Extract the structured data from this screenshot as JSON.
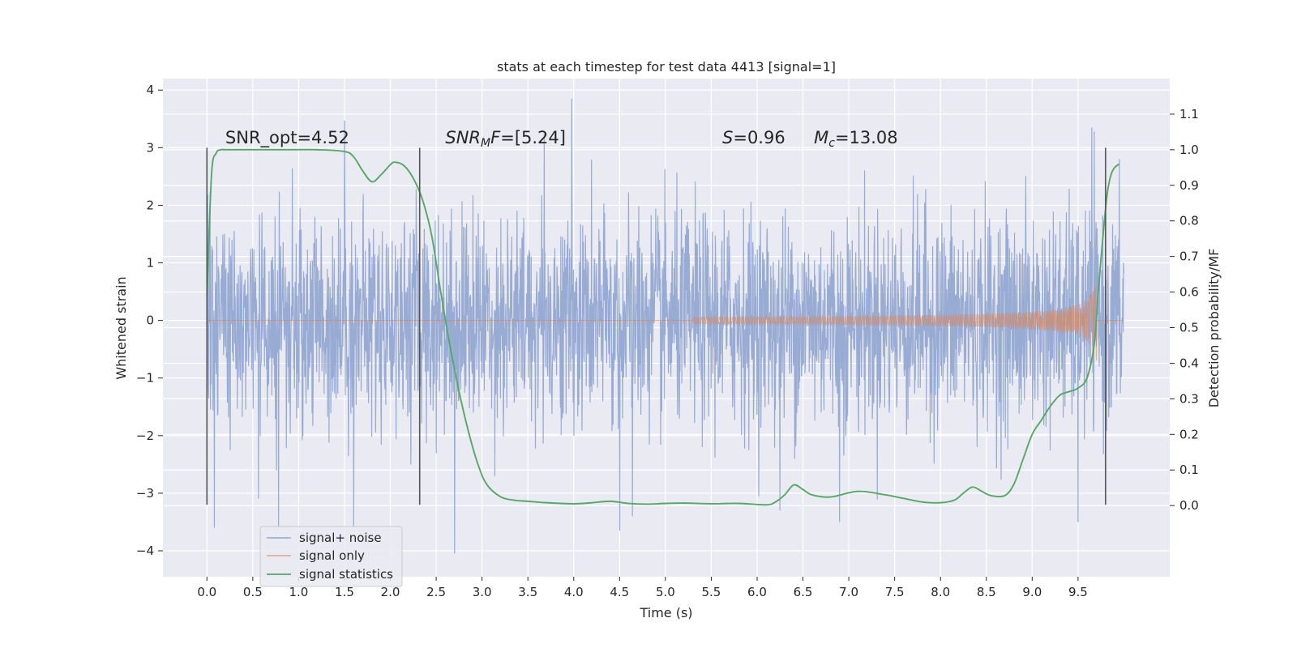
{
  "chart_data": {
    "type": "line",
    "title": "stats at each timestep for test data 4413 [signal=1]",
    "xlabel": "Time (s)",
    "ylabel": "Whitened strain",
    "y2label": "Detection probability/MF",
    "xlim": [
      -0.48,
      10.5
    ],
    "ylim": [
      -4.45,
      4.2
    ],
    "y2lim": [
      -0.2,
      1.2
    ],
    "xticks": [
      0.0,
      0.5,
      1.0,
      1.5,
      2.0,
      2.5,
      3.0,
      3.5,
      4.0,
      4.5,
      5.0,
      5.5,
      6.0,
      6.5,
      7.0,
      7.5,
      8.0,
      8.5,
      9.0,
      9.5
    ],
    "xtick_labels": [
      "0.0",
      "0.5",
      "1.0",
      "1.5",
      "2.0",
      "2.5",
      "3.0",
      "3.5",
      "4.0",
      "4.5",
      "5.0",
      "5.5",
      "6.0",
      "6.5",
      "7.0",
      "7.5",
      "8.0",
      "8.5",
      "9.0",
      "9.5"
    ],
    "yticks": [
      -4,
      -3,
      -2,
      -1,
      0,
      1,
      2,
      3,
      4
    ],
    "ytick_labels": [
      "−4",
      "−3",
      "−2",
      "−1",
      "0",
      "1",
      "2",
      "3",
      "4"
    ],
    "y2ticks": [
      0.0,
      0.1,
      0.2,
      0.3,
      0.4,
      0.5,
      0.6,
      0.7,
      0.8,
      0.9,
      1.0,
      1.1
    ],
    "y2tick_labels": [
      "0.0",
      "0.1",
      "0.2",
      "0.3",
      "0.4",
      "0.5",
      "0.6",
      "0.7",
      "0.8",
      "0.9",
      "1.0",
      "1.1"
    ],
    "grid": true,
    "legend_position": "lower-left",
    "vlines": {
      "x": [
        0.0,
        2.32,
        9.8
      ],
      "ymin": -3.2,
      "ymax": 3.0,
      "color": "#555555"
    },
    "annotations": [
      {
        "x": 0.2,
        "y": 3.05,
        "parts": [
          {
            "t": "SNR_opt=4.52"
          }
        ]
      },
      {
        "x": 2.6,
        "y": 3.05,
        "parts": [
          {
            "t": "SNR",
            "i": true
          },
          {
            "t": "M",
            "i": true,
            "sub": true
          },
          {
            "t": "F",
            "i": true
          },
          {
            "t": "=[5.24]"
          }
        ]
      },
      {
        "x": 5.62,
        "y": 3.05,
        "parts": [
          {
            "t": "S",
            "i": true
          },
          {
            "t": "=0.96"
          }
        ]
      },
      {
        "x": 6.62,
        "y": 3.05,
        "parts": [
          {
            "t": "M",
            "i": true
          },
          {
            "t": "c",
            "i": true,
            "sub": true
          },
          {
            "t": "=13.08"
          }
        ]
      }
    ],
    "series": [
      {
        "name": "signal+ noise",
        "color": "#8fa4cf",
        "x_range": [
          0.0,
          10.0
        ],
        "envelope_typical": 2.0,
        "peaks": [
          {
            "x": 0.08,
            "y": -3.6
          },
          {
            "x": 0.78,
            "y": -3.6
          },
          {
            "x": 1.5,
            "y": 3.47
          },
          {
            "x": 1.6,
            "y": -3.6
          },
          {
            "x": 2.7,
            "y": -4.05
          },
          {
            "x": 3.68,
            "y": 3.25
          },
          {
            "x": 3.98,
            "y": 3.85
          },
          {
            "x": 4.5,
            "y": -3.65
          },
          {
            "x": 4.64,
            "y": -3.4
          },
          {
            "x": 6.25,
            "y": -3.3
          },
          {
            "x": 6.9,
            "y": -3.5
          },
          {
            "x": 9.5,
            "y": -3.5
          },
          {
            "x": 9.65,
            "y": 3.35
          },
          {
            "x": 9.95,
            "y": 2.8
          }
        ]
      },
      {
        "name": "signal only",
        "color": "#dd8452",
        "chirp_start": 5.3,
        "chirp_end": 9.7,
        "peak_amplitude": 0.7
      },
      {
        "name": "signal statistics",
        "color": "#55a868",
        "axis": "right",
        "x": [
          0.0,
          0.05,
          0.1,
          0.15,
          0.2,
          0.4,
          0.8,
          1.2,
          1.5,
          1.6,
          1.7,
          1.8,
          1.9,
          2.0,
          2.05,
          2.15,
          2.25,
          2.35,
          2.45,
          2.55,
          2.65,
          2.75,
          2.85,
          2.95,
          3.05,
          3.2,
          3.35,
          3.5,
          3.7,
          4.0,
          4.2,
          4.4,
          4.6,
          4.8,
          5.0,
          5.2,
          5.5,
          5.8,
          6.1,
          6.2,
          6.3,
          6.4,
          6.5,
          6.6,
          6.8,
          7.1,
          7.4,
          7.6,
          7.8,
          8.0,
          8.15,
          8.25,
          8.35,
          8.45,
          8.55,
          8.7,
          8.8,
          8.9,
          9.0,
          9.1,
          9.2,
          9.3,
          9.4,
          9.5,
          9.6,
          9.68,
          9.72,
          9.78,
          9.82,
          9.86,
          9.9,
          9.95
        ],
        "y": [
          0.59,
          0.93,
          0.99,
          1.0,
          1.0,
          1.0,
          1.0,
          1.0,
          0.995,
          0.98,
          0.94,
          0.91,
          0.93,
          0.958,
          0.965,
          0.955,
          0.92,
          0.86,
          0.76,
          0.6,
          0.45,
          0.32,
          0.21,
          0.12,
          0.06,
          0.025,
          0.015,
          0.012,
          0.008,
          0.005,
          0.008,
          0.012,
          0.006,
          0.004,
          0.006,
          0.007,
          0.005,
          0.006,
          0.002,
          0.01,
          0.03,
          0.058,
          0.045,
          0.03,
          0.024,
          0.04,
          0.03,
          0.02,
          0.01,
          0.008,
          0.015,
          0.035,
          0.052,
          0.04,
          0.028,
          0.028,
          0.06,
          0.13,
          0.2,
          0.24,
          0.28,
          0.31,
          0.32,
          0.33,
          0.36,
          0.46,
          0.6,
          0.78,
          0.88,
          0.93,
          0.95,
          0.96
        ]
      }
    ]
  }
}
